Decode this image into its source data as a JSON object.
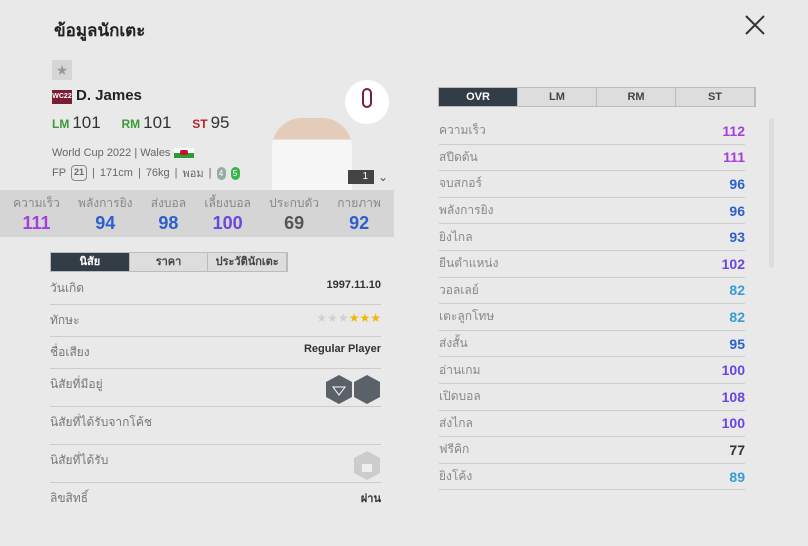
{
  "title": "ข้อมูลนักเตะ",
  "player": {
    "badge": "WC22",
    "name": "D. James",
    "positions": [
      {
        "pos": "LM",
        "ovr": "101",
        "color": "#3a9a3a"
      },
      {
        "pos": "RM",
        "ovr": "101",
        "color": "#3a9a3a"
      },
      {
        "pos": "ST",
        "ovr": "95",
        "color": "#b5252d"
      }
    ],
    "season": "World Cup 2022",
    "nation": "Wales",
    "fp_label": "FP",
    "fp": "21",
    "height": "171cm",
    "weight": "76kg",
    "body": "พอม",
    "left_foot": "4",
    "right_foot": "5",
    "level": "1"
  },
  "summary": [
    {
      "label": "ความเร็ว",
      "value": "111",
      "color": "#a43fdd"
    },
    {
      "label": "พลังการยิง",
      "value": "94",
      "color": "#2d5fcf"
    },
    {
      "label": "ส่งบอล",
      "value": "98",
      "color": "#2d5fcf"
    },
    {
      "label": "เลี้ยงบอล",
      "value": "100",
      "color": "#6a45e0"
    },
    {
      "label": "ประกบตัว",
      "value": "69",
      "color": "#555"
    },
    {
      "label": "กายภาพ",
      "value": "92",
      "color": "#2d5fcf"
    }
  ],
  "left_tabs": [
    "นิสัย",
    "ราคา",
    "ประวัตินักเตะ"
  ],
  "info": {
    "birth_label": "วันเกิด",
    "birth": "1997.11.10",
    "skill_label": "ทักษะ",
    "skill_stars": 3,
    "skill_max": 6,
    "fame_label": "ชื่อเสียง",
    "fame": "Regular Player",
    "traits_label": "นิสัยที่มีอยู่",
    "coach_traits_label": "นิสัยที่ได้รับจากโค้ช",
    "earned_traits_label": "นิสัยที่ได้รับ",
    "rights_label": "ลิขสิทธิ์",
    "rights": "ผ่าน"
  },
  "right_tabs": [
    "OVR",
    "LM",
    "RM",
    "ST"
  ],
  "stats": [
    {
      "label": "ความเร็ว",
      "value": "112",
      "color": "#a43fdd"
    },
    {
      "label": "สปีดต้น",
      "value": "111",
      "color": "#a43fdd"
    },
    {
      "label": "จบสกอร์",
      "value": "96",
      "color": "#2d5fcf"
    },
    {
      "label": "พลังการยิง",
      "value": "96",
      "color": "#2d5fcf"
    },
    {
      "label": "ยิงไกล",
      "value": "93",
      "color": "#2d5fcf"
    },
    {
      "label": "ยืนตำแหน่ง",
      "value": "102",
      "color": "#6a45e0"
    },
    {
      "label": "วอลเลย์",
      "value": "82",
      "color": "#3a9bd6"
    },
    {
      "label": "เตะลูกโทษ",
      "value": "82",
      "color": "#3a9bd6"
    },
    {
      "label": "ส่งสั้น",
      "value": "95",
      "color": "#2d5fcf"
    },
    {
      "label": "อ่านเกม",
      "value": "100",
      "color": "#6a45e0"
    },
    {
      "label": "เปิดบอล",
      "value": "108",
      "color": "#6a45e0"
    },
    {
      "label": "ส่งไกล",
      "value": "100",
      "color": "#6a45e0"
    },
    {
      "label": "ฟรีคิก",
      "value": "77",
      "color": "#333"
    },
    {
      "label": "ยิงโค้ง",
      "value": "89",
      "color": "#3a9bd6"
    }
  ]
}
